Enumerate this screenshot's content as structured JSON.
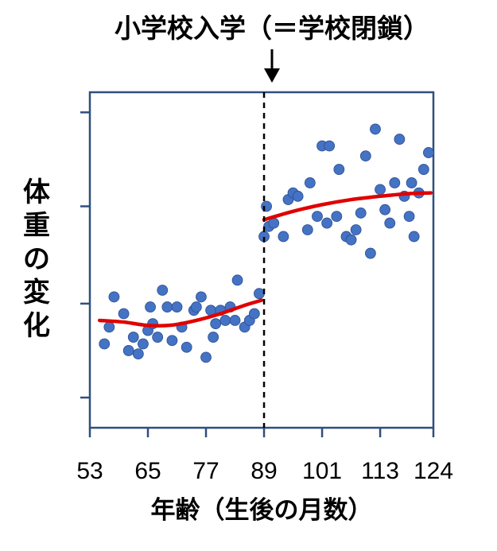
{
  "chart_data": {
    "type": "scatter",
    "title": "小学校入学（＝学校閉鎖）",
    "xlabel": "年齢（生後の月数）",
    "ylabel": "体重の変化",
    "xlim": [
      53,
      124
    ],
    "ylim": [
      0,
      100
    ],
    "x_ticks": [
      53,
      65,
      77,
      89,
      101,
      113,
      124
    ],
    "y_ticks": [
      9,
      37,
      66,
      94
    ],
    "cutoff_x": 89,
    "grid": false,
    "colors": {
      "points": "#4472c4",
      "trend": "#e00000",
      "axis": "#2f4f7f",
      "cutoff": "#000000"
    },
    "points": [
      [
        56,
        25
      ],
      [
        57,
        30
      ],
      [
        58,
        39
      ],
      [
        60,
        34
      ],
      [
        61,
        23
      ],
      [
        62,
        27
      ],
      [
        63,
        22
      ],
      [
        64,
        25
      ],
      [
        65,
        29
      ],
      [
        65.5,
        36
      ],
      [
        66,
        31
      ],
      [
        67,
        27
      ],
      [
        68,
        41
      ],
      [
        69,
        36
      ],
      [
        70,
        26
      ],
      [
        71,
        36
      ],
      [
        72,
        30
      ],
      [
        73,
        24
      ],
      [
        74.5,
        35
      ],
      [
        75,
        36
      ],
      [
        76,
        39
      ],
      [
        77,
        21
      ],
      [
        78,
        35
      ],
      [
        78.5,
        27
      ],
      [
        79,
        31
      ],
      [
        80,
        35
      ],
      [
        81,
        32
      ],
      [
        82,
        36
      ],
      [
        83,
        32
      ],
      [
        83.5,
        44
      ],
      [
        85,
        30
      ],
      [
        86,
        32
      ],
      [
        87,
        34
      ],
      [
        88,
        40
      ],
      [
        89,
        57
      ],
      [
        89.5,
        66
      ],
      [
        90,
        60
      ],
      [
        91,
        61
      ],
      [
        93,
        57
      ],
      [
        94,
        68
      ],
      [
        95,
        70
      ],
      [
        96,
        69
      ],
      [
        98,
        59
      ],
      [
        98.5,
        73
      ],
      [
        100,
        63
      ],
      [
        101,
        84
      ],
      [
        102,
        61
      ],
      [
        102.5,
        84
      ],
      [
        104,
        63
      ],
      [
        104.5,
        77
      ],
      [
        106,
        57
      ],
      [
        107,
        56
      ],
      [
        108,
        59
      ],
      [
        109,
        64
      ],
      [
        110,
        81
      ],
      [
        111,
        52
      ],
      [
        112,
        89
      ],
      [
        113,
        71
      ],
      [
        114,
        65
      ],
      [
        115,
        61
      ],
      [
        116,
        73
      ],
      [
        117,
        86
      ],
      [
        118,
        69
      ],
      [
        119,
        63
      ],
      [
        119.5,
        73
      ],
      [
        120,
        57
      ],
      [
        121,
        70
      ],
      [
        122,
        77
      ],
      [
        123,
        82
      ]
    ],
    "trend_pre": [
      [
        55,
        32
      ],
      [
        60,
        31.5
      ],
      [
        65,
        30.5
      ],
      [
        70,
        30.6
      ],
      [
        75,
        32
      ],
      [
        80,
        34
      ],
      [
        85,
        36.5
      ],
      [
        88.5,
        38
      ]
    ],
    "trend_post": [
      [
        89,
        62
      ],
      [
        95,
        64.5
      ],
      [
        101,
        66.5
      ],
      [
        107,
        68
      ],
      [
        113,
        69
      ],
      [
        119,
        69.8
      ],
      [
        123.5,
        70
      ]
    ]
  }
}
